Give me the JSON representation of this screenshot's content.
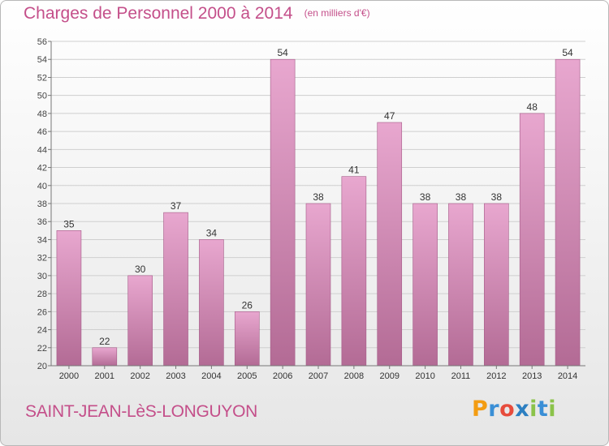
{
  "title": "Charges de Personnel 2000 à 2014",
  "unit_note": "(en milliers d'€)",
  "place": "SAINT-JEAN-LèS-LONGUYON",
  "logo": {
    "text": "Proxiti",
    "letter_colors": [
      "#f39c12",
      "#3a8fd6",
      "#e74c3c",
      "#2c7fc1",
      "#8bc34a",
      "#3a8fd6",
      "#8bc34a"
    ]
  },
  "colors": {
    "text": "#c44f8a",
    "bar_top": "#e8a7cf",
    "bar_bottom": "#b36b95",
    "bar_edge": "#a45a87"
  },
  "chart_data": {
    "type": "bar",
    "categories": [
      "2000",
      "2001",
      "2002",
      "2003",
      "2004",
      "2005",
      "2006",
      "2007",
      "2008",
      "2009",
      "2010",
      "2011",
      "2012",
      "2013",
      "2014"
    ],
    "values": [
      35,
      22,
      30,
      37,
      34,
      26,
      54,
      38,
      41,
      47,
      38,
      38,
      38,
      48,
      54
    ],
    "ylim": [
      20,
      56
    ],
    "yticks": [
      20,
      22,
      24,
      26,
      28,
      30,
      32,
      34,
      36,
      38,
      40,
      42,
      44,
      46,
      48,
      50,
      52,
      54,
      56
    ],
    "grid": true,
    "data_labels": true
  }
}
